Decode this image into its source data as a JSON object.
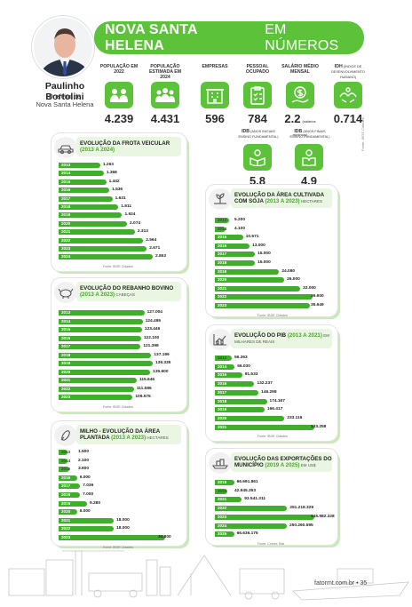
{
  "title": "NOVA SANTA HELENA EM NÚMEROS",
  "title_bold": "NOVA SANTA HELENA",
  "title_light": "EM NÚMEROS",
  "mayor": {
    "name": "Paulinho Bortolini",
    "role_line1": "Prefeito de",
    "role_line2": "Nova Santa Helena"
  },
  "stats": [
    {
      "label": "POPULAÇÃO EM 2022",
      "value": "4.239",
      "icon": "people-icon"
    },
    {
      "label": "POPULAÇÃO ESTIMADA EM 2024",
      "value": "4.431",
      "icon": "crowd-icon"
    },
    {
      "label": "EMPRESAS",
      "value": "596",
      "icon": "building-icon"
    },
    {
      "label": "PESSOAL OCUPADO",
      "value": "784",
      "icon": "clipboard-icon"
    },
    {
      "label": "SALÁRIO MÉDIO MENSAL",
      "value": "2.2",
      "value_suffix": "(salários mínimos)",
      "icon": "money-icon"
    },
    {
      "label": "IDH",
      "label_suffix": "(ÍNDICE DE DESENVOLVIMENTO HUMANO)",
      "value": "0.714",
      "icon": "hands-icon"
    }
  ],
  "ideb": [
    {
      "label": "IDB",
      "label_suffix": "(ANOS INICIAIS ENSINO FUNDAMENTAL)",
      "value": "5.8",
      "icon": "reader-icon"
    },
    {
      "label": "IDB",
      "label_suffix": "(ANOS FINAIS ENSINO FUNDAMENTAL)",
      "value": "4.9",
      "icon": "book-icon"
    }
  ],
  "side_source": "Fonte: IBGE Cidades",
  "chart_data": [
    {
      "type": "bar",
      "title": "EVOLUÇÃO DA FROTA VEICULAR",
      "subtitle": "(2013 A 2024)",
      "unit": "",
      "categories": [
        "2013",
        "2014",
        "2015",
        "2016",
        "2017",
        "2018",
        "2019",
        "2020",
        "2021",
        "2022",
        "2023",
        "2024"
      ],
      "labels": [
        "1.263",
        "1.368",
        "1.442",
        "1.536",
        "1.631",
        "1.811",
        "1.924",
        "2.074",
        "2.313",
        "2.564",
        "2.671",
        "2.853"
      ],
      "values": [
        1263,
        1368,
        1442,
        1536,
        1631,
        1811,
        1924,
        2074,
        2313,
        2564,
        2671,
        2853
      ],
      "source": "Fonte: IBGE Cidades"
    },
    {
      "type": "bar",
      "title": "EVOLUÇÃO DO REBANHO BOVINO",
      "subtitle": "(2013 A 2023)",
      "unit": "CABEÇAS",
      "categories": [
        "2013",
        "2014",
        "2015",
        "2016",
        "2017",
        "2018",
        "2019",
        "2020",
        "2021",
        "2022",
        "2023"
      ],
      "labels": [
        "127.004",
        "124.495",
        "123.446",
        "122.100",
        "121.398",
        "137.199",
        "139.335",
        "135.600",
        "115.646",
        "111.586",
        "109.575"
      ],
      "values": [
        127004,
        124495,
        123446,
        122100,
        121398,
        137199,
        139335,
        135600,
        115646,
        111586,
        109575
      ],
      "source": "Fonte: IBGE Cidades"
    },
    {
      "type": "bar",
      "title": "MILHO - EVOLUÇÃO DA ÁREA PLANTADA",
      "subtitle": "(2013 A 2023)",
      "unit": "HECTARES",
      "categories": [
        "2013",
        "2014",
        "2015",
        "2016",
        "2017",
        "2018",
        "2019",
        "2020",
        "2021",
        "2022",
        "2023"
      ],
      "labels": [
        "1.500",
        "2.100",
        "3.600",
        "6.000",
        "7.036",
        "7.000",
        "9.280",
        "6.000",
        "18.000",
        "18.000",
        "34.800"
      ],
      "values": [
        1500,
        2100,
        3600,
        6000,
        7036,
        7000,
        9280,
        6000,
        18000,
        18000,
        34800
      ],
      "source": "Fonte: IBGE Cidades"
    },
    {
      "type": "bar",
      "title": "EVOLUÇÃO DA ÁREA CULTIVADA COM SOJA",
      "subtitle": "(2013 A 2023)",
      "unit": "HECTARES",
      "categories": [
        "2013",
        "2014",
        "2015",
        "2016",
        "2017",
        "2018",
        "2019",
        "2020",
        "2021",
        "2022",
        "2023"
      ],
      "labels": [
        "5.200",
        "4.100",
        "10.571",
        "13.000",
        "15.000",
        "15.000",
        "24.080",
        "26.000",
        "32.000",
        "36.600",
        "35.649"
      ],
      "values": [
        5200,
        4100,
        10571,
        13000,
        15000,
        15000,
        24080,
        26000,
        32000,
        36600,
        35649
      ],
      "source": "Fonte: IBGE Cidades"
    },
    {
      "type": "bar",
      "title": "EVOLUÇÃO DO PIB",
      "subtitle": "(2013 A 2021)",
      "unit": "EM MILHARES DE REAIS",
      "categories": [
        "2013",
        "2014",
        "2015",
        "2016",
        "2017",
        "2018",
        "2019",
        "2020",
        "2021"
      ],
      "labels": [
        "56.363",
        "66.030",
        "91.533",
        "132.237",
        "146.298",
        "174.167",
        "166.417",
        "233.116",
        "333.258"
      ],
      "values": [
        56363,
        66030,
        91533,
        132237,
        146298,
        174167,
        166417,
        233116,
        333258
      ],
      "source": "Fonte: IBGE Cidades"
    },
    {
      "type": "bar",
      "title": "EVOLUÇÃO DAS EXPORTAÇÕES DO MUNICÍPIO",
      "subtitle": "(2019 A 2025)",
      "unit": "EM US$",
      "categories": [
        "2019",
        "2020",
        "2021",
        "2022",
        "2023",
        "2024",
        "2025"
      ],
      "labels": [
        "66.691.861",
        "42.945.353",
        "93.541.311",
        "251.218.328",
        "345.982.328",
        "250.260.595",
        "66.636.175"
      ],
      "values": [
        66691861,
        42945353,
        93541311,
        251218328,
        345982328,
        250260595,
        66636175
      ],
      "source": "Fonte: Comex Stat"
    }
  ],
  "footer": {
    "site": "fatormt.com.br",
    "page": "35"
  }
}
